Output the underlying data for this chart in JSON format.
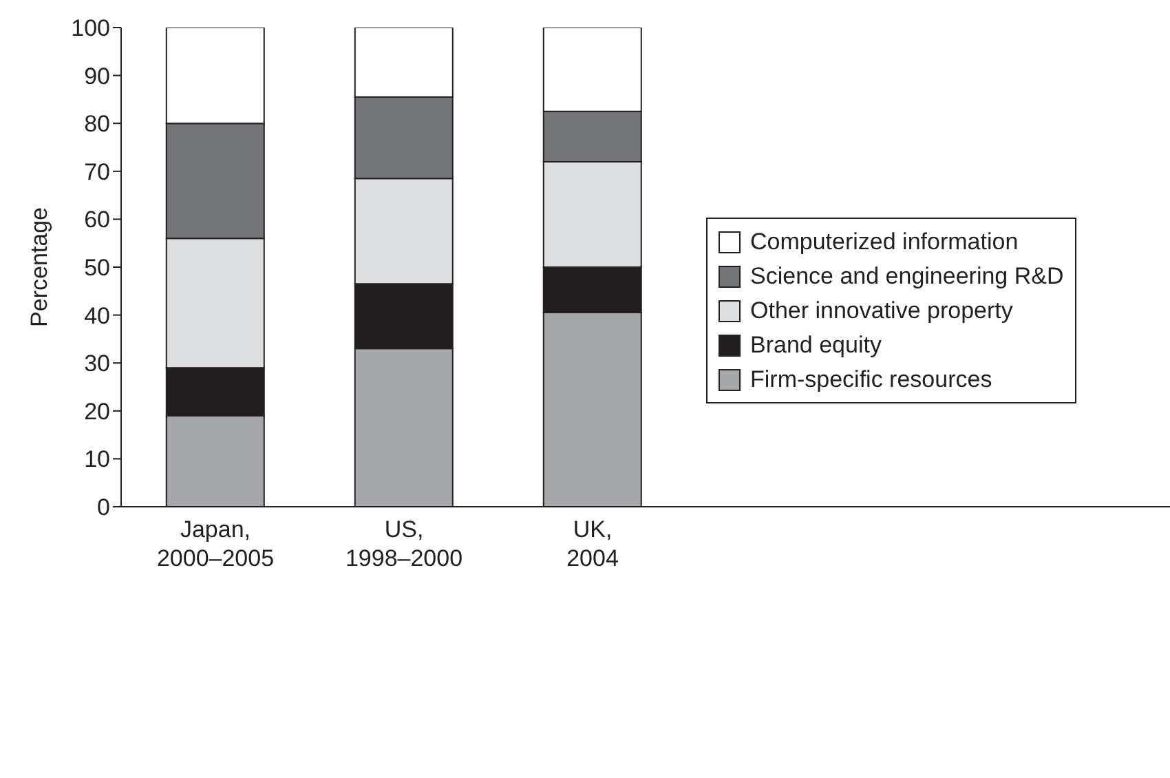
{
  "chart_data": {
    "type": "bar",
    "stacked": true,
    "ylabel": "Percentage",
    "categories": [
      "Japan, 2000–2005",
      "US, 1998–2000",
      "UK, 2004"
    ],
    "series": [
      {
        "name": "Firm-specific resources",
        "color": "#a6a7aa",
        "values": [
          19,
          33,
          40.5
        ]
      },
      {
        "name": "Brand equity",
        "color": "#231f20",
        "values": [
          10,
          13.5,
          9.5
        ]
      },
      {
        "name": "Other innovative property",
        "color": "#dcdddf",
        "values": [
          27,
          22,
          22
        ]
      },
      {
        "name": "Science and engineering R&D",
        "color": "#747578",
        "values": [
          24,
          17,
          10.5
        ]
      },
      {
        "name": "Computerized information",
        "color": "#ffffff",
        "values": [
          20,
          14.5,
          17.5
        ]
      }
    ],
    "ylim": [
      0,
      100
    ],
    "yticks": [
      0,
      10,
      20,
      30,
      40,
      50,
      60,
      70,
      80,
      90,
      100
    ],
    "legend": "right",
    "grid": false
  }
}
